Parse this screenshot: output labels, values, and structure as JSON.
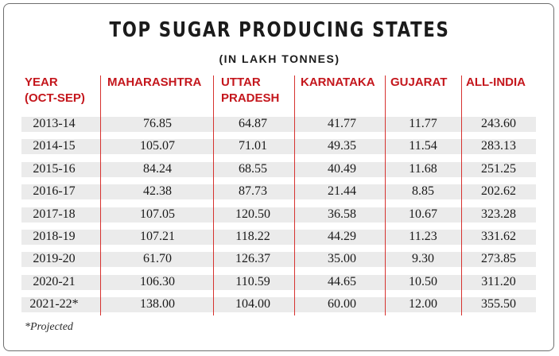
{
  "title": "TOP SUGAR PRODUCING STATES",
  "subtitle": "(IN LAKH TONNES)",
  "headers": {
    "year": [
      "YEAR",
      "(OCT-SEP)"
    ],
    "maharashtra": [
      "MAHARASHTRA"
    ],
    "uttar_pradesh": [
      "UTTAR",
      "PRADESH"
    ],
    "karnataka": [
      "KARNATAKA"
    ],
    "gujarat": [
      "GUJARAT"
    ],
    "all_india": [
      "ALL-INDIA"
    ]
  },
  "footnote": "*Projected",
  "colors": {
    "header_text": "#c4161c",
    "divider": "#d6322f",
    "row_band": "#ebebeb",
    "body_text": "#1a1a1a"
  },
  "chart_data": {
    "type": "table",
    "title": "TOP SUGAR PRODUCING STATES",
    "subtitle": "(IN LAKH TONNES)",
    "columns": [
      "YEAR (OCT-SEP)",
      "MAHARASHTRA",
      "UTTAR PRADESH",
      "KARNATAKA",
      "GUJARAT",
      "ALL-INDIA"
    ],
    "rows": [
      [
        "2013-14",
        "76.85",
        "64.87",
        "41.77",
        "11.77",
        "243.60"
      ],
      [
        "2014-15",
        "105.07",
        "71.01",
        "49.35",
        "11.54",
        "283.13"
      ],
      [
        "2015-16",
        "84.24",
        "68.55",
        "40.49",
        "11.68",
        "251.25"
      ],
      [
        "2016-17",
        "42.38",
        "87.73",
        "21.44",
        "8.85",
        "202.62"
      ],
      [
        "2017-18",
        "107.05",
        "120.50",
        "36.58",
        "10.67",
        "323.28"
      ],
      [
        "2018-19",
        "107.21",
        "118.22",
        "44.29",
        "11.23",
        "331.62"
      ],
      [
        "2019-20",
        "61.70",
        "126.37",
        "35.00",
        "9.30",
        "273.85"
      ],
      [
        "2020-21",
        "106.30",
        "110.59",
        "44.65",
        "10.50",
        "311.20"
      ],
      [
        "2021-22*",
        "138.00",
        "104.00",
        "60.00",
        "12.00",
        "355.50"
      ]
    ]
  }
}
